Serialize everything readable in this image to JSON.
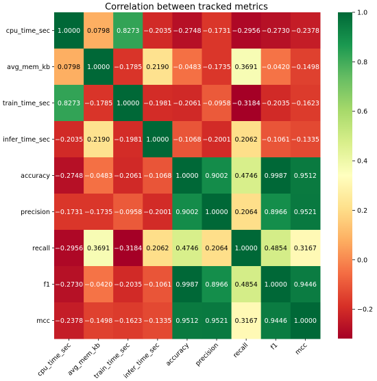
{
  "chart_data": {
    "type": "heatmap",
    "title": "Correlation between tracked metrics",
    "labels": [
      "cpu_time_sec",
      "avg_mem_kb",
      "train_time_sec",
      "infer_time_sec",
      "accuracy",
      "precision",
      "recall",
      "f1",
      "mcc"
    ],
    "matrix": [
      [
        1.0,
        0.0798,
        0.8273,
        -0.2035,
        -0.2748,
        -0.1731,
        -0.2956,
        -0.273,
        -0.2378
      ],
      [
        0.0798,
        1.0,
        -0.1785,
        0.219,
        -0.0483,
        -0.1735,
        0.3691,
        -0.042,
        -0.1498
      ],
      [
        0.8273,
        -0.1785,
        1.0,
        -0.1981,
        -0.2061,
        -0.0958,
        -0.3184,
        -0.2035,
        -0.1623
      ],
      [
        -0.2035,
        0.219,
        -0.1981,
        1.0,
        -0.1068,
        -0.2001,
        0.2062,
        -0.1061,
        -0.1335
      ],
      [
        -0.2748,
        -0.0483,
        -0.2061,
        -0.1068,
        1.0,
        0.9002,
        0.4746,
        0.9987,
        0.9512
      ],
      [
        -0.1731,
        -0.1735,
        -0.0958,
        -0.2001,
        0.9002,
        1.0,
        0.2064,
        0.8966,
        0.9521
      ],
      [
        -0.2956,
        0.3691,
        -0.3184,
        0.2062,
        0.4746,
        0.2064,
        1.0,
        0.4854,
        0.3167
      ],
      [
        -0.273,
        -0.042,
        -0.2035,
        -0.1061,
        0.9987,
        0.8966,
        0.4854,
        1.0,
        0.9446
      ],
      [
        -0.2378,
        -0.1498,
        -0.1623,
        -0.1335,
        0.9512,
        0.9521,
        0.3167,
        0.9446,
        1.0
      ]
    ],
    "value_format": "4 decimals",
    "colormap": "RdYlGn",
    "color_range": [
      -0.3184,
      1.0
    ],
    "colorbar": {
      "ticks": [
        1.0,
        0.8,
        0.6,
        0.4,
        0.2,
        0.0,
        -0.2
      ],
      "tick_labels": [
        "1.0",
        "0.8",
        "0.6",
        "0.4",
        "0.2",
        "0.0",
        "−0.2"
      ]
    },
    "annotations": true,
    "grid": false
  }
}
